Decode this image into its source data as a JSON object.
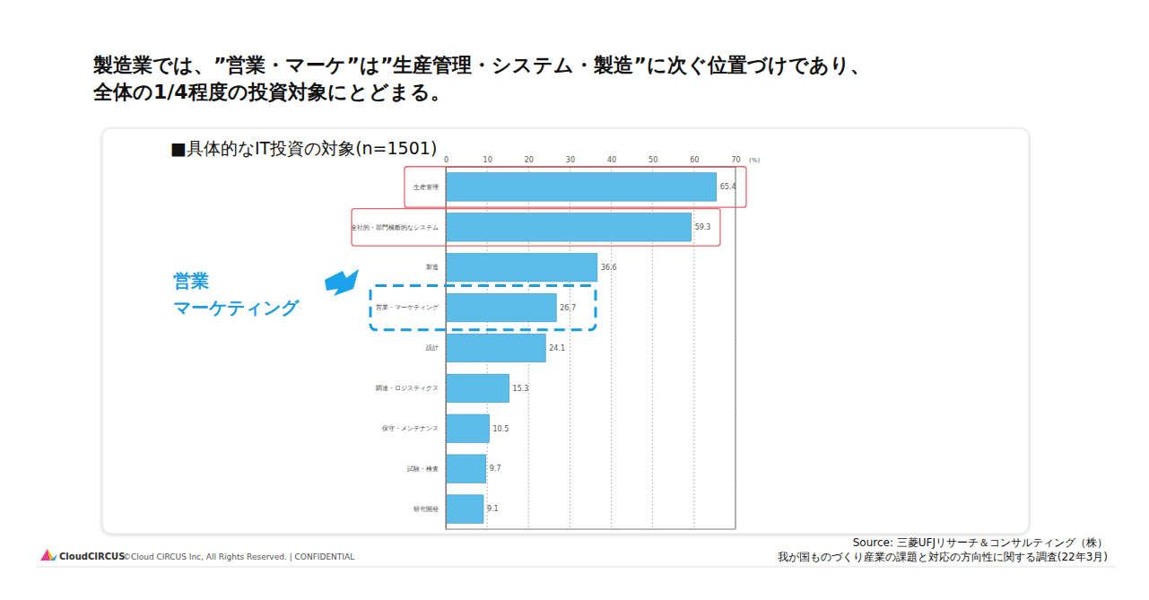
{
  "slide": {
    "heading": [
      "製造業では、”営業・マーケ”は”生産管理・システム・製造”に次ぐ位置づけであり、",
      "全体の1/4程度の投資対象にとどまる。"
    ],
    "logo": "CloudCIRCUS",
    "footer": "©Cloud CIRCUS Inc, All Rights Reserved. | CONFIDENTIAL",
    "source": [
      "Source: 三菱UFJリサーチ＆コンサルティング（株）",
      "我が国ものづくり産業の課題と対応の方向性に関する調査(22年3月)"
    ]
  },
  "chart_data": {
    "type": "bar",
    "orientation": "horizontal",
    "title": "■具体的なIT投資の対象(n=1501)",
    "xlabel": "(%)",
    "categories": [
      "生産管理",
      "全社的・部門横断的なシステム",
      "製造",
      "営業・マーケティング",
      "設計",
      "調達・ロジスティクス",
      "保守・メンテナンス",
      "試験・検査",
      "研究開発"
    ],
    "values": [
      65.4,
      59.3,
      36.6,
      26.7,
      24.1,
      15.3,
      10.5,
      9.7,
      9.1
    ],
    "color": "#5bbde8",
    "xlim": [
      0,
      70
    ],
    "xticks": [
      0,
      10,
      20,
      30,
      40,
      50,
      60,
      70
    ],
    "grid": true,
    "data_labels": true,
    "annotation": [
      "営業",
      "マーケティング"
    ]
  }
}
